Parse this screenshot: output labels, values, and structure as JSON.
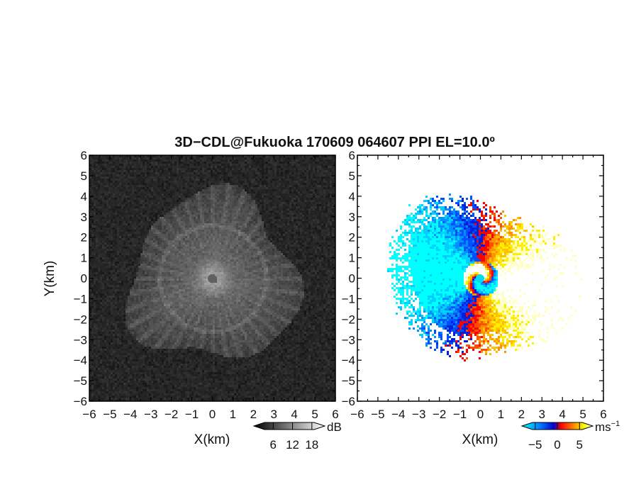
{
  "chart_data": {
    "title": "3D−CDL@Fukuoka 170609 064607 PPI EL=10.0º",
    "panels": [
      {
        "id": "reflectivity",
        "type": "heatmap",
        "xlabel": "X(km)",
        "ylabel": "Y(km)",
        "xlim": [
          -6,
          6
        ],
        "ylim": [
          -6,
          6
        ],
        "xticks": [
          "−6",
          "−5",
          "−4",
          "−3",
          "−2",
          "−1",
          "0",
          "1",
          "2",
          "3",
          "4",
          "5",
          "6"
        ],
        "yticks": [
          "6",
          "5",
          "4",
          "3",
          "2",
          "1",
          "0",
          "−1",
          "−2",
          "−3",
          "−4",
          "−5",
          "−6"
        ],
        "colorbar": {
          "unit": "dB",
          "ticks": [
            "6",
            "12",
            "18"
          ],
          "tick_values": [
            6,
            12,
            18
          ],
          "range": [
            0,
            22
          ],
          "colors": [
            "#000000",
            "#ffffff"
          ]
        }
      },
      {
        "id": "doppler-velocity",
        "type": "heatmap",
        "xlabel": "X(km)",
        "ylabel": "",
        "xlim": [
          -6,
          6
        ],
        "ylim": [
          -6,
          6
        ],
        "xticks": [
          "−6",
          "−5",
          "−4",
          "−3",
          "−2",
          "−1",
          "0",
          "1",
          "2",
          "3",
          "4",
          "5",
          "6"
        ],
        "yticks": [
          "6",
          "5",
          "4",
          "3",
          "2",
          "1",
          "0",
          "−1",
          "−2",
          "−3",
          "−4",
          "−5",
          "−6"
        ],
        "colorbar": {
          "unit": "ms",
          "unit_exp": "−1",
          "ticks": [
            "−5",
            "0",
            "5"
          ],
          "tick_values": [
            -5,
            0,
            5
          ],
          "range": [
            -8,
            8
          ],
          "colors": [
            "#00ffff",
            "#0080ff",
            "#0000d0",
            "#ff0000",
            "#ff8000",
            "#ffff00",
            "#ffffff"
          ]
        }
      }
    ]
  }
}
